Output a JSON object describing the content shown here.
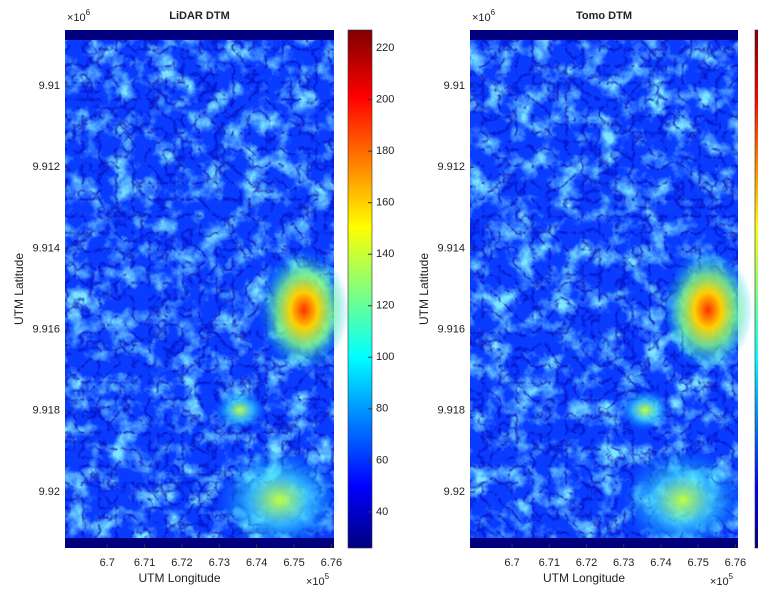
{
  "chart_data": [
    {
      "type": "heatmap",
      "title": "LiDAR DTM",
      "xlabel": "UTM Longitude",
      "ylabel": "UTM Latitude",
      "x_multiplier": {
        "base": "×10",
        "power": "5"
      },
      "y_multiplier": {
        "base": "×10",
        "power": "6"
      },
      "xlim": [
        6.6887,
        6.7607
      ],
      "xticks": [
        6.7,
        6.71,
        6.72,
        6.73,
        6.74,
        6.75,
        6.76
      ],
      "ylim": [
        9.90862,
        9.92138
      ],
      "yticks": [
        9.91,
        9.912,
        9.914,
        9.916,
        9.918,
        9.92
      ],
      "y_reversed": true,
      "colormap": "jet",
      "colorbar": true,
      "clim": [
        26,
        227
      ],
      "cticks": [
        40,
        60,
        80,
        100,
        120,
        140,
        160,
        180,
        200,
        220
      ]
    },
    {
      "type": "heatmap",
      "title": "Tomo DTM",
      "xlabel": "UTM Longitude",
      "ylabel": "UTM Latitude",
      "x_multiplier": {
        "base": "×10",
        "power": "5"
      },
      "y_multiplier": {
        "base": "×10",
        "power": "6"
      },
      "xlim": [
        6.6887,
        6.7607
      ],
      "xticks": [
        6.7,
        6.71,
        6.72,
        6.73,
        6.74,
        6.75,
        6.76
      ],
      "ylim": [
        9.90862,
        9.92138
      ],
      "yticks": [
        9.91,
        9.912,
        9.914,
        9.916,
        9.918,
        9.92
      ],
      "y_reversed": true,
      "colormap": "jet",
      "colorbar": true
    }
  ]
}
